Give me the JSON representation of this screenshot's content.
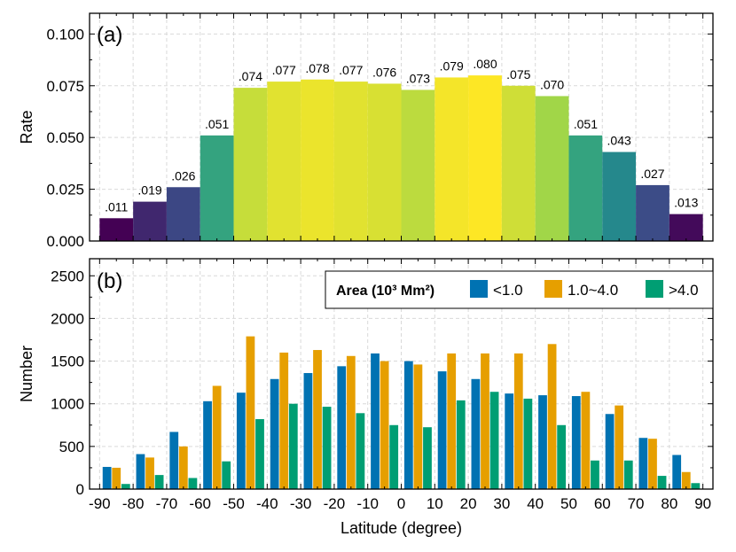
{
  "chart_data": [
    {
      "type": "bar",
      "panel_label": "(a)",
      "ylabel": "Rate",
      "ylim": [
        0,
        0.11
      ],
      "yticks": [
        "0.000",
        "0.025",
        "0.050",
        "0.075",
        "0.100"
      ],
      "ytick_values": [
        0,
        0.025,
        0.05,
        0.075,
        0.1
      ],
      "grid": true,
      "bin_edges": [
        -90,
        90
      ],
      "bin_width": 10,
      "values": [
        0.011,
        0.019,
        0.026,
        0.051,
        0.074,
        0.077,
        0.078,
        0.077,
        0.076,
        0.073,
        0.079,
        0.08,
        0.075,
        0.07,
        0.051,
        0.043,
        0.027,
        0.013
      ],
      "data_labels": [
        ".011",
        ".019",
        ".026",
        ".051",
        ".074",
        ".077",
        ".078",
        ".077",
        ".076",
        ".073",
        ".079",
        ".080",
        ".075",
        ".070",
        ".051",
        ".043",
        ".027",
        ".013"
      ],
      "colormap": "viridis"
    },
    {
      "type": "bar",
      "panel_label": "(b)",
      "ylabel": "Number",
      "xlabel": "Latitude (degree)",
      "ylim": [
        0,
        2700
      ],
      "yticks": [
        "0",
        "500",
        "1000",
        "1500",
        "2000",
        "2500"
      ],
      "ytick_values": [
        0,
        500,
        1000,
        1500,
        2000,
        2500
      ],
      "xticks": [
        "-90",
        "-80",
        "-70",
        "-60",
        "-50",
        "-40",
        "-30",
        "-20",
        "-10",
        "0",
        "10",
        "20",
        "30",
        "40",
        "50",
        "60",
        "70",
        "80",
        "90"
      ],
      "xtick_values": [
        -90,
        -80,
        -70,
        -60,
        -50,
        -40,
        -30,
        -20,
        -10,
        0,
        10,
        20,
        30,
        40,
        50,
        60,
        70,
        80,
        90
      ],
      "xlim": [
        -93,
        93
      ],
      "grid": true,
      "bin_edges": [
        -90,
        90
      ],
      "bin_width": 10,
      "legend": {
        "title": "Area (10³ Mm²)",
        "placement": "top-right"
      },
      "series": [
        {
          "name": "<1.0",
          "color": "#0072B2",
          "values": [
            260,
            410,
            670,
            1030,
            1130,
            1290,
            1360,
            1440,
            1590,
            1500,
            1380,
            1290,
            1120,
            1100,
            1090,
            880,
            600,
            400
          ]
        },
        {
          "name": "1.0~4.0",
          "color": "#E69F00",
          "values": [
            250,
            370,
            500,
            1210,
            1790,
            1600,
            1630,
            1560,
            1500,
            1460,
            1590,
            1590,
            1590,
            1700,
            1140,
            980,
            590,
            200
          ]
        },
        {
          "name": ">4.0",
          "color": "#009E73",
          "values": [
            60,
            165,
            130,
            325,
            820,
            1000,
            965,
            890,
            750,
            725,
            1040,
            1140,
            1060,
            750,
            335,
            335,
            155,
            70
          ]
        }
      ]
    }
  ]
}
